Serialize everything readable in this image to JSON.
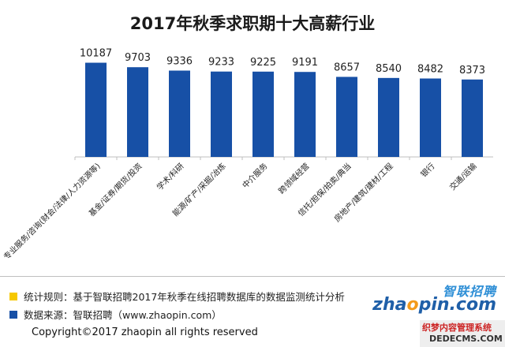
{
  "chart_data": {
    "type": "bar",
    "title": "2017年秋季求职期十大高薪行业",
    "categories": [
      "专业服务/咨询(财会/法律/人力资源等)",
      "基金/证券/期货/投资",
      "学术/科研",
      "能源/矿产/采掘/冶炼",
      "中介服务",
      "跨领域经营",
      "信托/担保/拍卖/典当",
      "房地产/建筑/建材/工程",
      "银行",
      "交通/运输"
    ],
    "values": [
      10187,
      9703,
      9336,
      9233,
      9225,
      9191,
      8657,
      8540,
      8482,
      8373
    ],
    "ylim": [
      0,
      11000
    ],
    "bar_color": "#1750a6",
    "grid": false
  },
  "notes": [
    {
      "color": "#f6c800",
      "text": "统计规则：基于智联招聘2017年秋季在线招聘数据库的数据监测统计分析"
    },
    {
      "color": "#1750a6",
      "text": "数据来源：智联招聘（www.zhaopin.com）"
    }
  ],
  "copyright": "Copyright©2017 zhaopin all rights reserved",
  "logo": {
    "cn": "智联招聘",
    "en_pre": "zha",
    "en_o": "o",
    "en_post": "pin.com"
  },
  "watermark": {
    "cn": "织梦内容管理系统",
    "en": "DEDECMS.COM"
  }
}
